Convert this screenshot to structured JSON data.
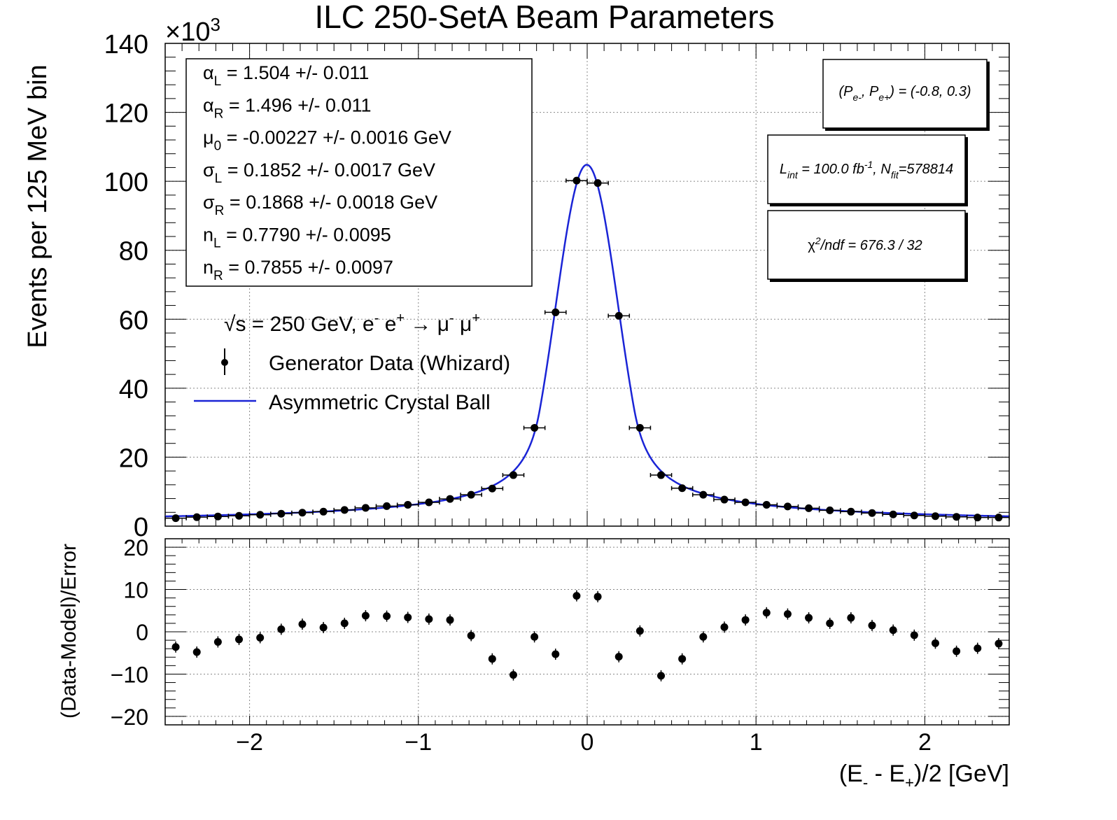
{
  "chart_data": [
    {
      "type": "scatter",
      "title": "ILC 250-SetA Beam Parameters",
      "ylabel": "Events per 125 MeV bin",
      "y_multiplier": "×10",
      "y_multiplier_exp": "3",
      "xlim": [
        -2.5,
        2.5
      ],
      "ylim": [
        0,
        140
      ],
      "y_ticks": [
        0,
        20,
        40,
        60,
        80,
        100,
        120,
        140
      ],
      "grid": true,
      "x": [
        -2.4375,
        -2.3125,
        -2.1875,
        -2.0625,
        -1.9375,
        -1.8125,
        -1.6875,
        -1.5625,
        -1.4375,
        -1.3125,
        -1.1875,
        -1.0625,
        -0.9375,
        -0.8125,
        -0.6875,
        -0.5625,
        -0.4375,
        -0.3125,
        -0.1875,
        -0.0625,
        0.0625,
        0.1875,
        0.3125,
        0.4375,
        0.5625,
        0.6875,
        0.8125,
        0.9375,
        1.0625,
        1.1875,
        1.3125,
        1.4375,
        1.5625,
        1.6875,
        1.8125,
        1.9375,
        2.0625,
        2.1875,
        2.3125,
        2.4375
      ],
      "series": [
        {
          "name": "Generator Data (Whizard)",
          "values": [
            2.3,
            2.6,
            2.8,
            3.0,
            3.3,
            3.6,
            3.9,
            4.2,
            4.7,
            5.3,
            5.8,
            6.2,
            6.9,
            7.9,
            9.1,
            10.9,
            14.8,
            28.5,
            62.0,
            100.2,
            99.5,
            61.0,
            28.5,
            14.8,
            11.0,
            9.1,
            7.7,
            6.9,
            6.2,
            5.7,
            5.2,
            4.6,
            4.2,
            3.8,
            3.4,
            3.1,
            2.9,
            2.7,
            2.5,
            2.5
          ]
        },
        {
          "name": "Asymmetric Crystal Ball",
          "color": "#1a24d6"
        }
      ],
      "params": [
        {
          "sym": "α",
          "sub": "L",
          "text": "1.504 +/- 0.011"
        },
        {
          "sym": "α",
          "sub": "R",
          "text": "1.496 +/- 0.011"
        },
        {
          "sym": "μ",
          "sub": "0",
          "text": "-0.00227 +/- 0.0016 GeV"
        },
        {
          "sym": "σ",
          "sub": "L",
          "text": "0.1852 +/- 0.0017 GeV"
        },
        {
          "sym": "σ",
          "sub": "R",
          "text": "0.1868 +/- 0.0018 GeV"
        },
        {
          "sym": "n",
          "sub": "L",
          "text": "0.7790 +/- 0.0095"
        },
        {
          "sym": "n",
          "sub": "R",
          "text": "0.7855 +/- 0.0097"
        }
      ],
      "fit_params": {
        "alpha_L": 1.504,
        "alpha_R": 1.496,
        "mu0": -0.00227,
        "sigma_L": 0.1852,
        "sigma_R": 0.1868,
        "n_L": 0.779,
        "n_R": 0.7855,
        "peak": 104.8
      },
      "process": {
        "sqrt_symbol": "√",
        "s": "s",
        "rest": " = 250 GeV, e",
        "em_sup": "-",
        "mid": " e",
        "ep_sup": "+",
        "arrow": " → μ",
        "mum_sup": "-",
        "mu2": " μ",
        "mup_sup": "+"
      },
      "legend": {
        "data_label": "Generator Data (Whizard)",
        "fit_label": "Asymmetric Crystal Ball"
      },
      "info": {
        "pol_open": "(P",
        "pol_sub1": "e-",
        "pol_mid": ", P",
        "pol_sub2": "e+",
        "pol_close": ") = (-0.8, 0.3)",
        "lumi_L": "L",
        "lumi_sub": "int",
        "lumi_mid": " = 100.0 fb",
        "lumi_sup": "-1",
        "lumi_N": ", N",
        "lumi_sub2": "fit",
        "lumi_val": "=578814",
        "chi_sym": "χ",
        "chi_sup": "2",
        "chi_text": "/ndf =  676.3 /  32"
      }
    },
    {
      "type": "scatter",
      "ylabel": "(Data-Model)/Error",
      "xlabel_parts": {
        "a": "(E",
        "a_sub": "-",
        "b": " - E",
        "b_sub": "+",
        "c": ")/2 [GeV]"
      },
      "xlim": [
        -2.5,
        2.5
      ],
      "ylim": [
        -22,
        22
      ],
      "y_ticks": [
        -20,
        -10,
        0,
        10,
        20
      ],
      "y_tick_labels": [
        "−20",
        "−10",
        "0",
        "10",
        "20"
      ],
      "x_ticks": [
        -2,
        -1,
        0,
        1,
        2
      ],
      "x_tick_labels": [
        "−2",
        "−1",
        "0",
        "1",
        "2"
      ],
      "grid": true,
      "values": [
        -3.6,
        -4.8,
        -2.4,
        -1.8,
        -1.4,
        0.6,
        1.8,
        1.0,
        2.0,
        3.8,
        3.7,
        3.4,
        3.0,
        2.8,
        -0.9,
        -6.4,
        -10.2,
        -1.2,
        -5.3,
        8.5,
        8.3,
        -5.9,
        0.2,
        -10.4,
        -6.4,
        -1.2,
        1.1,
        2.8,
        4.5,
        4.2,
        3.3,
        2.0,
        3.3,
        1.5,
        0.4,
        -0.8,
        -2.7,
        -4.6,
        -3.9,
        -2.8
      ]
    }
  ]
}
